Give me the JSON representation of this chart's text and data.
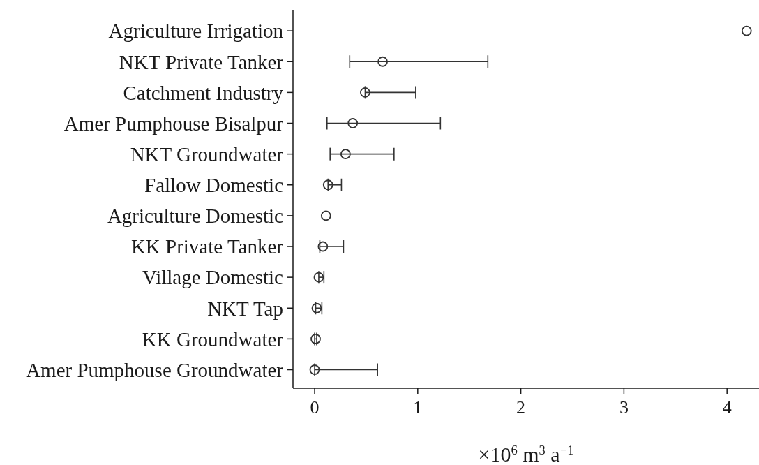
{
  "chart_data": {
    "type": "scatter",
    "orientation": "horizontal",
    "categories": [
      "Agriculture Irrigation",
      "NKT Private Tanker",
      "Catchment Industry",
      "Amer Pumphouse Bisalpur",
      "NKT Groundwater",
      "Fallow Domestic",
      "Agriculture Domestic",
      "KK Private Tanker",
      "Village Domestic",
      "NKT Tap",
      "KK Groundwater",
      "Amer Pumphouse Groundwater"
    ],
    "values": [
      4.19,
      0.66,
      0.49,
      0.37,
      0.3,
      0.13,
      0.11,
      0.08,
      0.04,
      0.02,
      0.01,
      0.0
    ],
    "errors": [
      null,
      [
        0.34,
        1.68
      ],
      [
        0.49,
        0.98
      ],
      [
        0.12,
        1.22
      ],
      [
        0.15,
        0.77
      ],
      [
        0.13,
        0.26
      ],
      null,
      [
        0.05,
        0.28
      ],
      [
        0.04,
        0.09
      ],
      [
        0.01,
        0.07
      ],
      [
        0.0,
        0.02
      ],
      [
        0.0,
        0.61
      ]
    ],
    "color": "#333333",
    "marker": "circle",
    "xlim": [
      -0.21,
      4.31
    ],
    "xticks": [
      0,
      1,
      2,
      3,
      4
    ],
    "xlabel": "×10$^{6}$ m$^{3}$ a$^{−1}$"
  }
}
